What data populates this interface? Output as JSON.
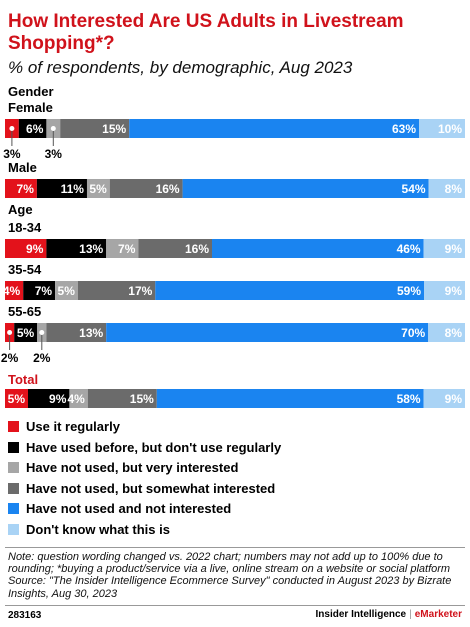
{
  "header": {
    "title": "How Interested Are US Adults in Livestream Shopping*?",
    "subtitle": "% of respondents, by demographic, Aug 2023"
  },
  "footer": {
    "note": "Note: question wording changed vs. 2022 chart; numbers may not add up to 100% due to rounding; *buying a product/service via a live, online stream on a website or social platform",
    "source": "Source: \"The Insider Intelligence Ecommerce Survey\" conducted in August 2023 by Bizrate Insights, Aug 30, 2023",
    "chart_id": "283163",
    "brand": "Insider Intelligence",
    "brand_separator": "|",
    "brand_accent": "eMarketer"
  },
  "chart_data": {
    "type": "bar",
    "orientation": "horizontal",
    "stacked": true,
    "unit": "%",
    "series": [
      {
        "name": "Use it regularly",
        "color": "#e3121b",
        "label_color": "#ffffff"
      },
      {
        "name": "Have used before, but don't use regularly",
        "color": "#000000",
        "label_color": "#ffffff"
      },
      {
        "name": "Have not used, but very interested",
        "color": "#a6a6a6",
        "label_color": "#ffffff"
      },
      {
        "name": "Have not used, but somewhat interested",
        "color": "#6b6b6b",
        "label_color": "#ffffff"
      },
      {
        "name": "Have not used and not interested",
        "color": "#1a84f0",
        "label_color": "#ffffff"
      },
      {
        "name": "Don't know what this is",
        "color": "#a9d3f5",
        "label_color": "#ffffff"
      }
    ],
    "groups": [
      {
        "label": "Gender",
        "label_color": "#000000",
        "rows": [
          {
            "label": "Female",
            "values": [
              3,
              6,
              3,
              15,
              63,
              10
            ],
            "callouts": [
              0,
              2
            ]
          },
          {
            "label": "Male",
            "values": [
              7,
              11,
              5,
              16,
              54,
              8
            ],
            "callouts": []
          }
        ]
      },
      {
        "label": "Age",
        "label_color": "#000000",
        "rows": [
          {
            "label": "18-34",
            "values": [
              9,
              13,
              7,
              16,
              46,
              9
            ],
            "callouts": []
          },
          {
            "label": "35-54",
            "values": [
              4,
              7,
              5,
              17,
              59,
              9
            ],
            "callouts": []
          },
          {
            "label": "55-65",
            "values": [
              2,
              5,
              2,
              13,
              70,
              8
            ],
            "callouts": [
              0,
              2
            ]
          }
        ]
      },
      {
        "label": "Total",
        "label_color": "#d0121b",
        "rows": [
          {
            "label": "",
            "values": [
              5,
              9,
              4,
              15,
              58,
              9
            ],
            "callouts": []
          }
        ]
      }
    ]
  }
}
